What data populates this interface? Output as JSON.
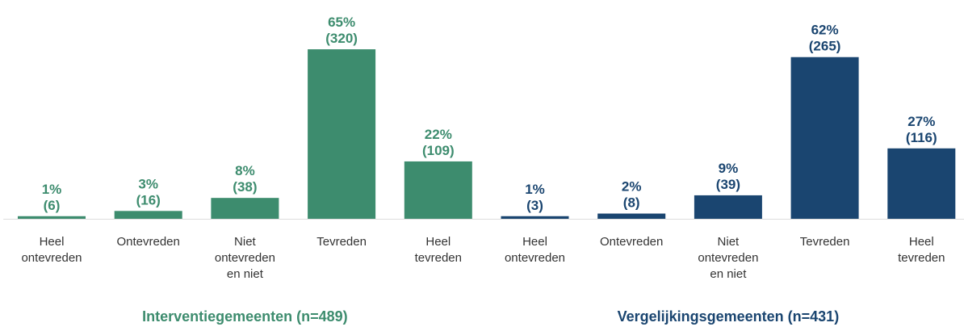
{
  "chart_data": [
    {
      "type": "bar",
      "title": "Interventiegemeenten (n=489)",
      "color": "#3d8c6e",
      "categories": [
        "Heel ontevreden",
        "Ontevreden",
        "Niet ontevreden en niet",
        "Tevreden",
        "Heel tevreden"
      ],
      "values": [
        1,
        3,
        8,
        65,
        22
      ],
      "value_labels": [
        "1%",
        "3%",
        "8%",
        "65%",
        "22%"
      ],
      "count_labels": [
        "(6)",
        "(16)",
        "(38)",
        "(320)",
        "(109)"
      ]
    },
    {
      "type": "bar",
      "title": "Vergelijkingsgemeenten (n=431)",
      "color": "#1a4570",
      "categories": [
        "Heel ontevreden",
        "Ontevreden",
        "Niet ontevreden en niet",
        "Tevreden",
        "Heel tevreden"
      ],
      "values": [
        1,
        2,
        9,
        62,
        27
      ],
      "value_labels": [
        "1%",
        "2%",
        "9%",
        "62%",
        "27%"
      ],
      "count_labels": [
        "(3)",
        "(8)",
        "(39)",
        "(265)",
        "(116)"
      ]
    }
  ]
}
